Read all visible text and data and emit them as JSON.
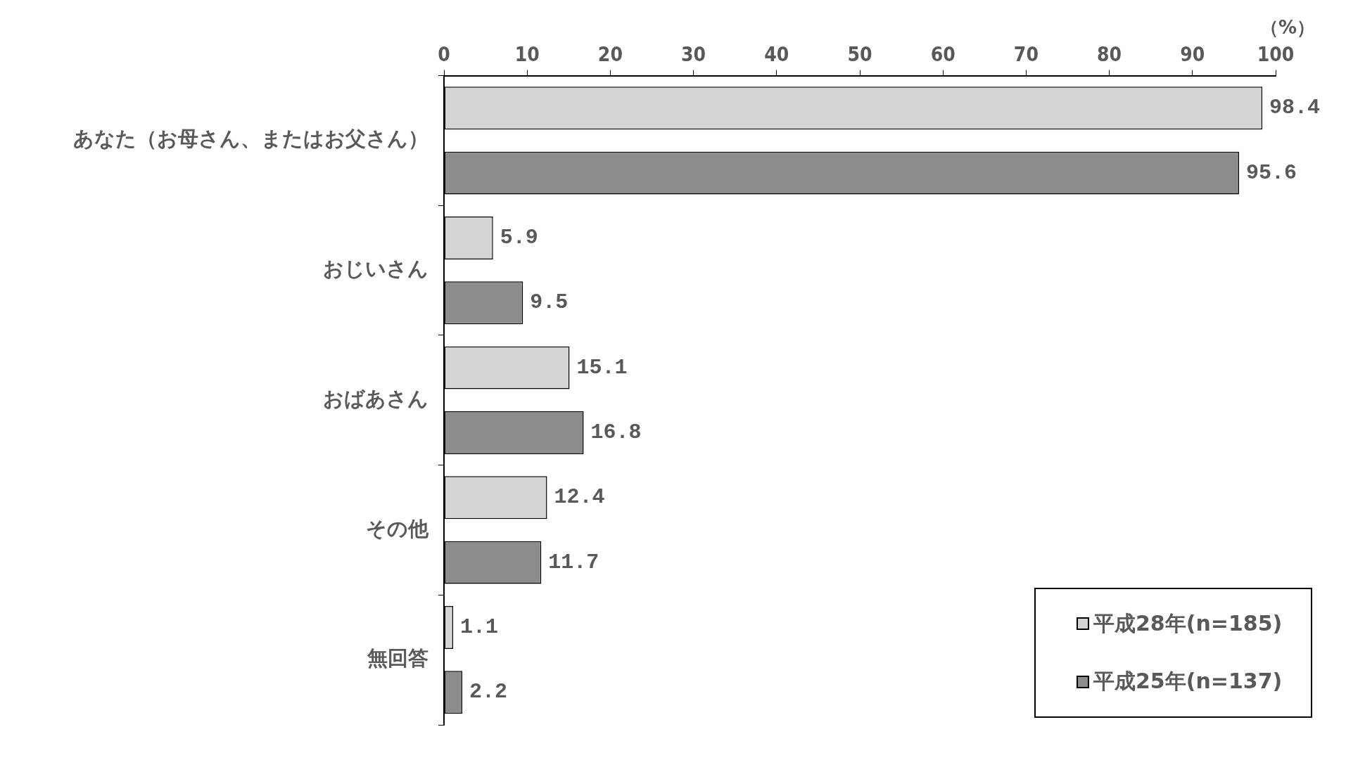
{
  "chart_data": {
    "type": "bar",
    "orientation": "horizontal",
    "xlabel": "（%）",
    "categories": [
      "あなた（お母さん、またはお父さん）",
      "おじいさん",
      "おばあさん",
      "その他",
      "無回答"
    ],
    "series": [
      {
        "name": "平成28年(n=185)",
        "color": "#d4d4d4",
        "values": [
          98.4,
          5.9,
          15.1,
          12.4,
          1.1
        ]
      },
      {
        "name": "平成25年(n=137)",
        "color": "#8c8c8c",
        "values": [
          95.6,
          9.5,
          16.8,
          11.7,
          2.2
        ]
      }
    ],
    "xlim": [
      0,
      100
    ],
    "xticks": [
      0,
      10,
      20,
      30,
      40,
      50,
      60,
      70,
      80,
      90,
      100
    ],
    "data_labels": true,
    "legend": "bottom right",
    "grid": false
  }
}
